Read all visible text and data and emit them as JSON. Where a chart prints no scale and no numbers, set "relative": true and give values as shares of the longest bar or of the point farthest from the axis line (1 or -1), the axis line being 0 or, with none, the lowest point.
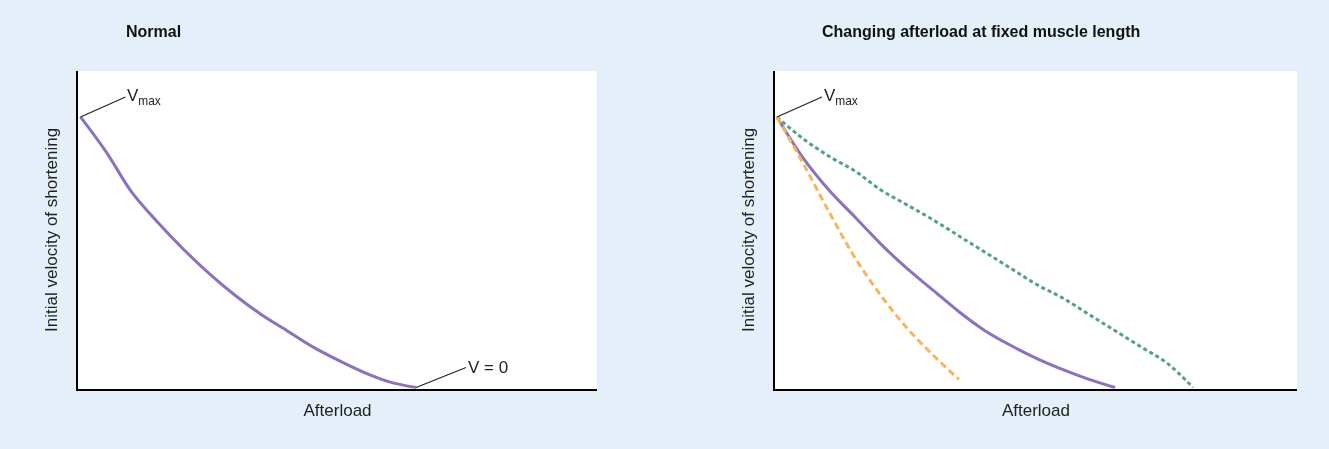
{
  "chart_data": [
    {
      "type": "line",
      "title": "Normal",
      "xlabel": "Afterload",
      "ylabel": "Initial velocity of shortening",
      "relative": true,
      "grid": false,
      "marker": "none",
      "categories": [
        null,
        null,
        null,
        null,
        null,
        null,
        null,
        null,
        null,
        null,
        null,
        null,
        null,
        null,
        null,
        null,
        null,
        null,
        null,
        null,
        null
      ],
      "series": [
        {
          "color": "#8b72be",
          "line_style": "solid",
          "values": [
            1.0,
            0.87,
            0.72,
            0.61,
            0.51,
            0.42,
            0.34,
            0.27,
            0.21,
            0.15,
            0.1,
            0.055,
            0.02,
            0,
            null,
            null,
            null,
            null,
            null,
            null,
            null
          ]
        }
      ],
      "annotations": [
        "V$_{max}$",
        "V = 0"
      ]
    },
    {
      "type": "line",
      "title": "Changing afterload at fixed muscle length",
      "xlabel": "Afterload",
      "ylabel": "Initial velocity of shortening",
      "relative": true,
      "grid": false,
      "marker": "none",
      "categories": [
        null,
        null,
        null,
        null,
        null,
        null,
        null,
        null,
        null,
        null,
        null,
        null,
        null,
        null,
        null,
        null,
        null,
        null,
        null,
        null,
        null
      ],
      "series": [
        {
          "color": "#8b72be",
          "line_style": "solid",
          "values": [
            1.0,
            0.85,
            0.73,
            0.63,
            0.53,
            0.44,
            0.36,
            0.28,
            0.21,
            0.155,
            0.107,
            0.066,
            0.03,
            0,
            null,
            null,
            null,
            null,
            null,
            null,
            null
          ]
        },
        {
          "color": "#4fa387",
          "line_style": "dotted",
          "values": [
            1.0,
            0.92,
            0.855,
            0.8,
            0.73,
            0.675,
            0.62,
            0.56,
            0.5,
            0.44,
            0.38,
            0.33,
            0.27,
            0.21,
            0.15,
            0.09,
            0,
            null,
            null,
            null,
            null
          ]
        },
        {
          "color": "#f9b55a",
          "line_style": "dashed",
          "values": [
            1.0,
            0.83,
            0.65,
            0.48,
            0.34,
            0.22,
            0.12,
            0.03,
            null,
            null,
            null,
            null,
            null,
            null,
            null,
            null,
            null,
            null,
            null,
            null,
            null
          ]
        }
      ],
      "annotations": [
        "V$_{max}$"
      ]
    }
  ]
}
